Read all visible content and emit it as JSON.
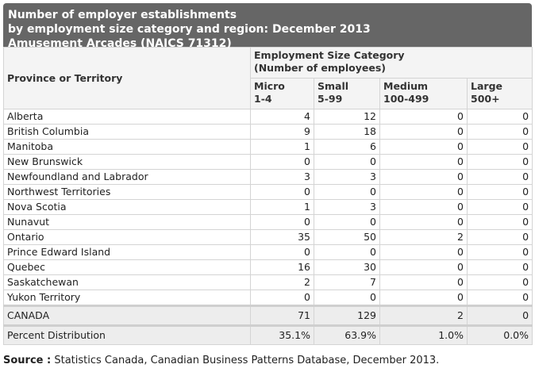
{
  "title": {
    "line1": "Number of employer establishments",
    "line2": "by employment size category and region: December 2013",
    "line3": "Amusement Arcades (NAICS 71312)"
  },
  "headers": {
    "province": "Province or Territory",
    "group_line1": "Employment Size Category",
    "group_line2": "(Number of employees)",
    "columns": [
      {
        "name": "Micro",
        "range": "1-4"
      },
      {
        "name": "Small",
        "range": "5-99"
      },
      {
        "name": "Medium",
        "range": "100-499"
      },
      {
        "name": "Large",
        "range": "500+"
      }
    ]
  },
  "rows": [
    {
      "region": "Alberta",
      "values": [
        "4",
        "12",
        "0",
        "0"
      ]
    },
    {
      "region": "British Columbia",
      "values": [
        "9",
        "18",
        "0",
        "0"
      ]
    },
    {
      "region": "Manitoba",
      "values": [
        "1",
        "6",
        "0",
        "0"
      ]
    },
    {
      "region": "New Brunswick",
      "values": [
        "0",
        "0",
        "0",
        "0"
      ]
    },
    {
      "region": "Newfoundland and Labrador",
      "values": [
        "3",
        "3",
        "0",
        "0"
      ]
    },
    {
      "region": "Northwest Territories",
      "values": [
        "0",
        "0",
        "0",
        "0"
      ]
    },
    {
      "region": "Nova Scotia",
      "values": [
        "1",
        "3",
        "0",
        "0"
      ]
    },
    {
      "region": "Nunavut",
      "values": [
        "0",
        "0",
        "0",
        "0"
      ]
    },
    {
      "region": "Ontario",
      "values": [
        "35",
        "50",
        "2",
        "0"
      ]
    },
    {
      "region": "Prince Edward Island",
      "values": [
        "0",
        "0",
        "0",
        "0"
      ]
    },
    {
      "region": "Quebec",
      "values": [
        "16",
        "30",
        "0",
        "0"
      ]
    },
    {
      "region": "Saskatchewan",
      "values": [
        "2",
        "7",
        "0",
        "0"
      ]
    },
    {
      "region": "Yukon Territory",
      "values": [
        "0",
        "0",
        "0",
        "0"
      ]
    }
  ],
  "total": {
    "region": "CANADA",
    "values": [
      "71",
      "129",
      "2",
      "0"
    ]
  },
  "percent": {
    "region": "Percent Distribution",
    "values": [
      "35.1%",
      "63.9%",
      "1.0%",
      "0.0%"
    ]
  },
  "source": {
    "label": "Source :",
    "text": " Statistics Canada, Canadian Business Patterns Database, December 2013."
  },
  "colors": {
    "title_background": "#666666",
    "header_background": "#f4f4f4",
    "total_background": "#ededed"
  }
}
